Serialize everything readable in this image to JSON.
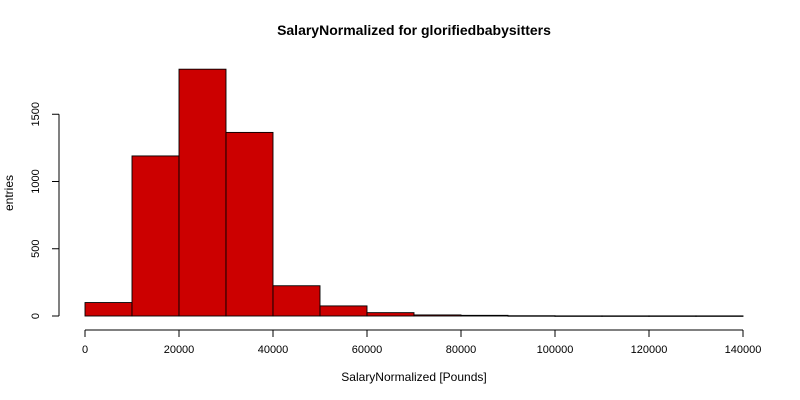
{
  "chart_data": {
    "type": "bar",
    "subtype": "histogram",
    "title": "SalaryNormalized for glorifiedbabysitters",
    "xlabel": "SalaryNormalized [Pounds]",
    "ylabel": "entries",
    "bar_color": "#cc0000",
    "bar_edge_color": "#000000",
    "x_ticks": [
      0,
      20000,
      40000,
      60000,
      80000,
      100000,
      120000,
      140000
    ],
    "y_ticks": [
      0,
      500,
      1000,
      1500
    ],
    "xlim": [
      0,
      140000
    ],
    "ylim": [
      0,
      1850
    ],
    "bins": [
      {
        "start": 0,
        "end": 10000,
        "value": 100
      },
      {
        "start": 10000,
        "end": 20000,
        "value": 1190
      },
      {
        "start": 20000,
        "end": 30000,
        "value": 1835
      },
      {
        "start": 30000,
        "end": 40000,
        "value": 1365
      },
      {
        "start": 40000,
        "end": 50000,
        "value": 225
      },
      {
        "start": 50000,
        "end": 60000,
        "value": 75
      },
      {
        "start": 60000,
        "end": 70000,
        "value": 25
      },
      {
        "start": 70000,
        "end": 80000,
        "value": 8
      },
      {
        "start": 80000,
        "end": 90000,
        "value": 5
      },
      {
        "start": 90000,
        "end": 100000,
        "value": 2
      },
      {
        "start": 100000,
        "end": 110000,
        "value": 1
      },
      {
        "start": 110000,
        "end": 120000,
        "value": 1
      },
      {
        "start": 120000,
        "end": 130000,
        "value": 1
      },
      {
        "start": 130000,
        "end": 140000,
        "value": 1
      }
    ],
    "grid": false
  }
}
